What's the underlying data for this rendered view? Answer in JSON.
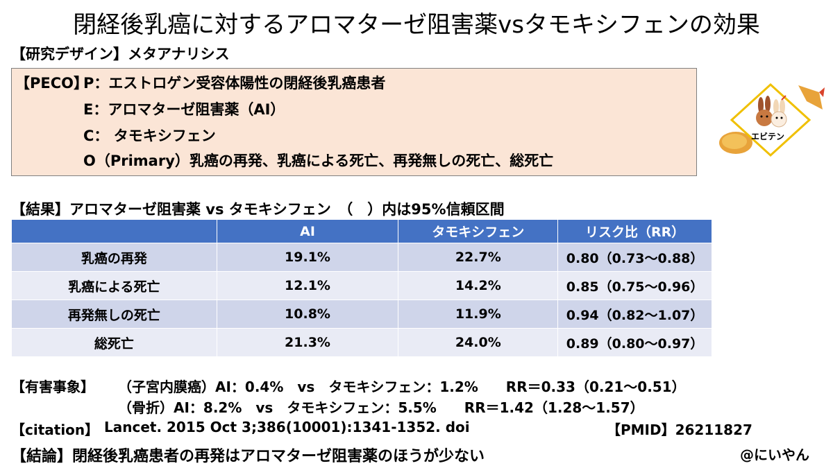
{
  "title": "閉経後乳癌に対するアロマターゼ阻害薬vsタモキシフェンの効果",
  "design": "【研究デザイン】メタアナリシス",
  "peco": {
    "label": "【PECO】",
    "p": "P：エストロゲン受容体陽性の閉経後乳癌患者",
    "e": "E：アロマターゼ阻害薬（AI）",
    "c": "C： タモキシフェン",
    "o": "O（Primary）乳癌の再発、乳癌による死亡、再発無しの死亡、総死亡"
  },
  "results_heading": "【結果】アロマターゼ阻害薬 vs タモキシフェン　（　）内は95%信頼区間",
  "table": {
    "headers": [
      "",
      "AI",
      "タモキシフェン",
      "リスク比（RR）"
    ],
    "rows": [
      [
        "乳癌の再発",
        "19.1%",
        "22.7%",
        "0.80（0.73～0.88）"
      ],
      [
        "乳癌による死亡",
        "12.1%",
        "14.2%",
        "0.85（0.75～0.96）"
      ],
      [
        "再発無しの死亡",
        "10.8%",
        "11.9%",
        "0.94（0.82～1.07）"
      ],
      [
        "総死亡",
        "21.3%",
        "24.0%",
        "0.89（0.80～0.97）"
      ]
    ]
  },
  "adverse": {
    "label": "【有害事象】",
    "line1": "（子宮内膜癌）AI：0.4%　vs　タモキシフェン：1.2%　　RR＝0.33（0.21～0.51）",
    "line2": "（骨折）AI：8.2%　vs　タモキシフェン：5.5%　　RR＝1.42（1.28～1.57）"
  },
  "citation": {
    "label": "【citation】",
    "text": "Lancet. 2015 Oct 3;386(10001):1341-1352. doi",
    "pmid": "【PMID】26211827"
  },
  "conclusion": "【結論】閉経後乳癌患者の再発はアロマターゼ阻害薬のほうが少ない",
  "author": "@にいやん",
  "logo": {
    "text": "エビテン",
    "icon": "shrimp-tempura-bunny-logo"
  },
  "colors": {
    "peco_bg": "#fbe5d6",
    "table_header": "#4472c4",
    "row_dark": "#cfd5ea",
    "row_light": "#e9ebf5"
  }
}
